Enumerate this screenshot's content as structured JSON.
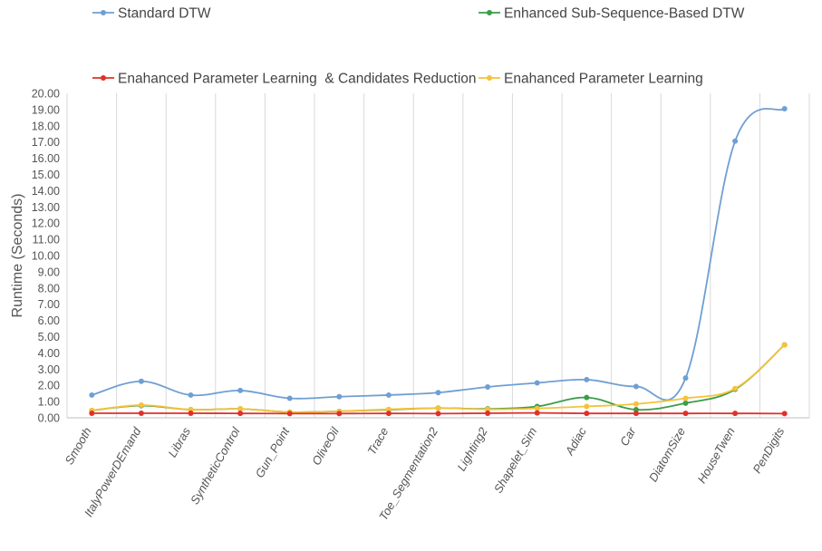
{
  "chart_data": {
    "type": "line",
    "ylabel": "Runtime (Seconds)",
    "ylim": [
      0,
      20
    ],
    "ytick_step": 1,
    "ytick_decimals": 2,
    "grid": {
      "vertical": true,
      "horizontal": false
    },
    "legend_position": "top",
    "categories": [
      "Smooth",
      "ItalyPowerDEmand",
      "Libras",
      "SyntheticControl",
      "Gun_Point",
      "OliveOil",
      "Trace",
      "Toe_Segmentation2",
      "Lighting2",
      "Shapelet_Sim",
      "Adiac",
      "Car",
      "DiatomSize",
      "HouseTwen",
      "PenDigits"
    ],
    "series": [
      {
        "name": "Standard DTW",
        "color": "#6f9fd2",
        "values": [
          1.4,
          2.25,
          1.4,
          1.68,
          1.2,
          1.3,
          1.4,
          1.55,
          1.9,
          2.15,
          2.35,
          1.93,
          2.45,
          17.05,
          19.05
        ]
      },
      {
        "name": "Enhanced Sub-Sequence-Based DTW",
        "color": "#3a9d4a",
        "values": [
          0.45,
          0.75,
          0.5,
          0.55,
          0.35,
          0.4,
          0.5,
          0.6,
          0.55,
          0.7,
          1.25,
          0.5,
          0.9,
          1.75,
          4.5
        ]
      },
      {
        "name": "Enahanced Parameter Learning  & Candidates Reduction",
        "color": "#e0302b",
        "values": [
          0.28,
          0.28,
          0.28,
          0.27,
          0.26,
          0.26,
          0.27,
          0.26,
          0.28,
          0.3,
          0.27,
          0.27,
          0.27,
          0.27,
          0.26
        ]
      },
      {
        "name": "Enahanced Parameter Learning",
        "color": "#f5c23a",
        "values": [
          0.45,
          0.78,
          0.5,
          0.55,
          0.35,
          0.4,
          0.52,
          0.6,
          0.52,
          0.58,
          0.7,
          0.85,
          1.2,
          1.8,
          4.5
        ]
      }
    ]
  }
}
